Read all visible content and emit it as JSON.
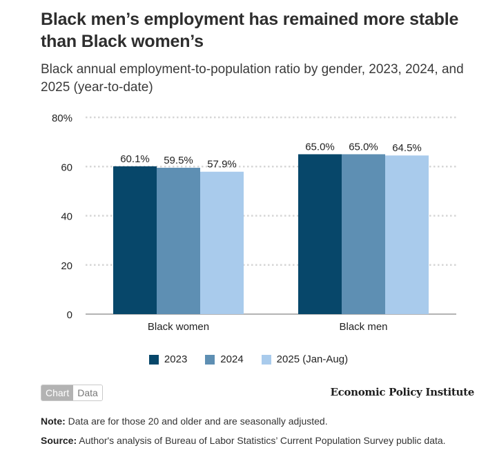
{
  "header": {
    "title": "Black men’s employment has remained more stable than Black women’s",
    "subtitle": "Black annual employment-to-population ratio by gender, 2023, 2024, and 2025 (year-to-date)"
  },
  "chart_data": {
    "type": "bar",
    "title": "Black men’s employment has remained more stable than Black women’s",
    "subtitle": "Black annual employment-to-population ratio by gender, 2023, 2024, and 2025 (year-to-date)",
    "xlabel": "",
    "ylabel": "",
    "categories": [
      "Black women",
      "Black men"
    ],
    "series": [
      {
        "name": "2023",
        "color": "#07476a",
        "values": [
          60.1,
          65.0
        ],
        "labels": [
          "60.1%",
          "65.0%"
        ]
      },
      {
        "name": "2024",
        "color": "#5e8fb3",
        "values": [
          59.5,
          65.0
        ],
        "labels": [
          "59.5%",
          "65.0%"
        ]
      },
      {
        "name": "2025 (Jan-Aug)",
        "color": "#a9cbec",
        "values": [
          57.9,
          64.5
        ],
        "labels": [
          "57.9%",
          "64.5%"
        ]
      }
    ],
    "ylim": [
      0,
      80
    ],
    "yticks": [
      0,
      20,
      40,
      60,
      80
    ],
    "ytick_labels": [
      "0",
      "20",
      "40",
      "60",
      "80%"
    ],
    "grid": true,
    "legend_position": "bottom-center"
  },
  "controls": {
    "chart_tab": "Chart",
    "data_tab": "Data"
  },
  "brand": "Economic Policy Institute",
  "footer": {
    "note_label": "Note:",
    "note_text": " Data are for those 20 and older and are seasonally adjusted.",
    "source_label": "Source:",
    "source_text": " Author's analysis of Bureau of Labor Statistics’ Current Population Survey public data."
  }
}
